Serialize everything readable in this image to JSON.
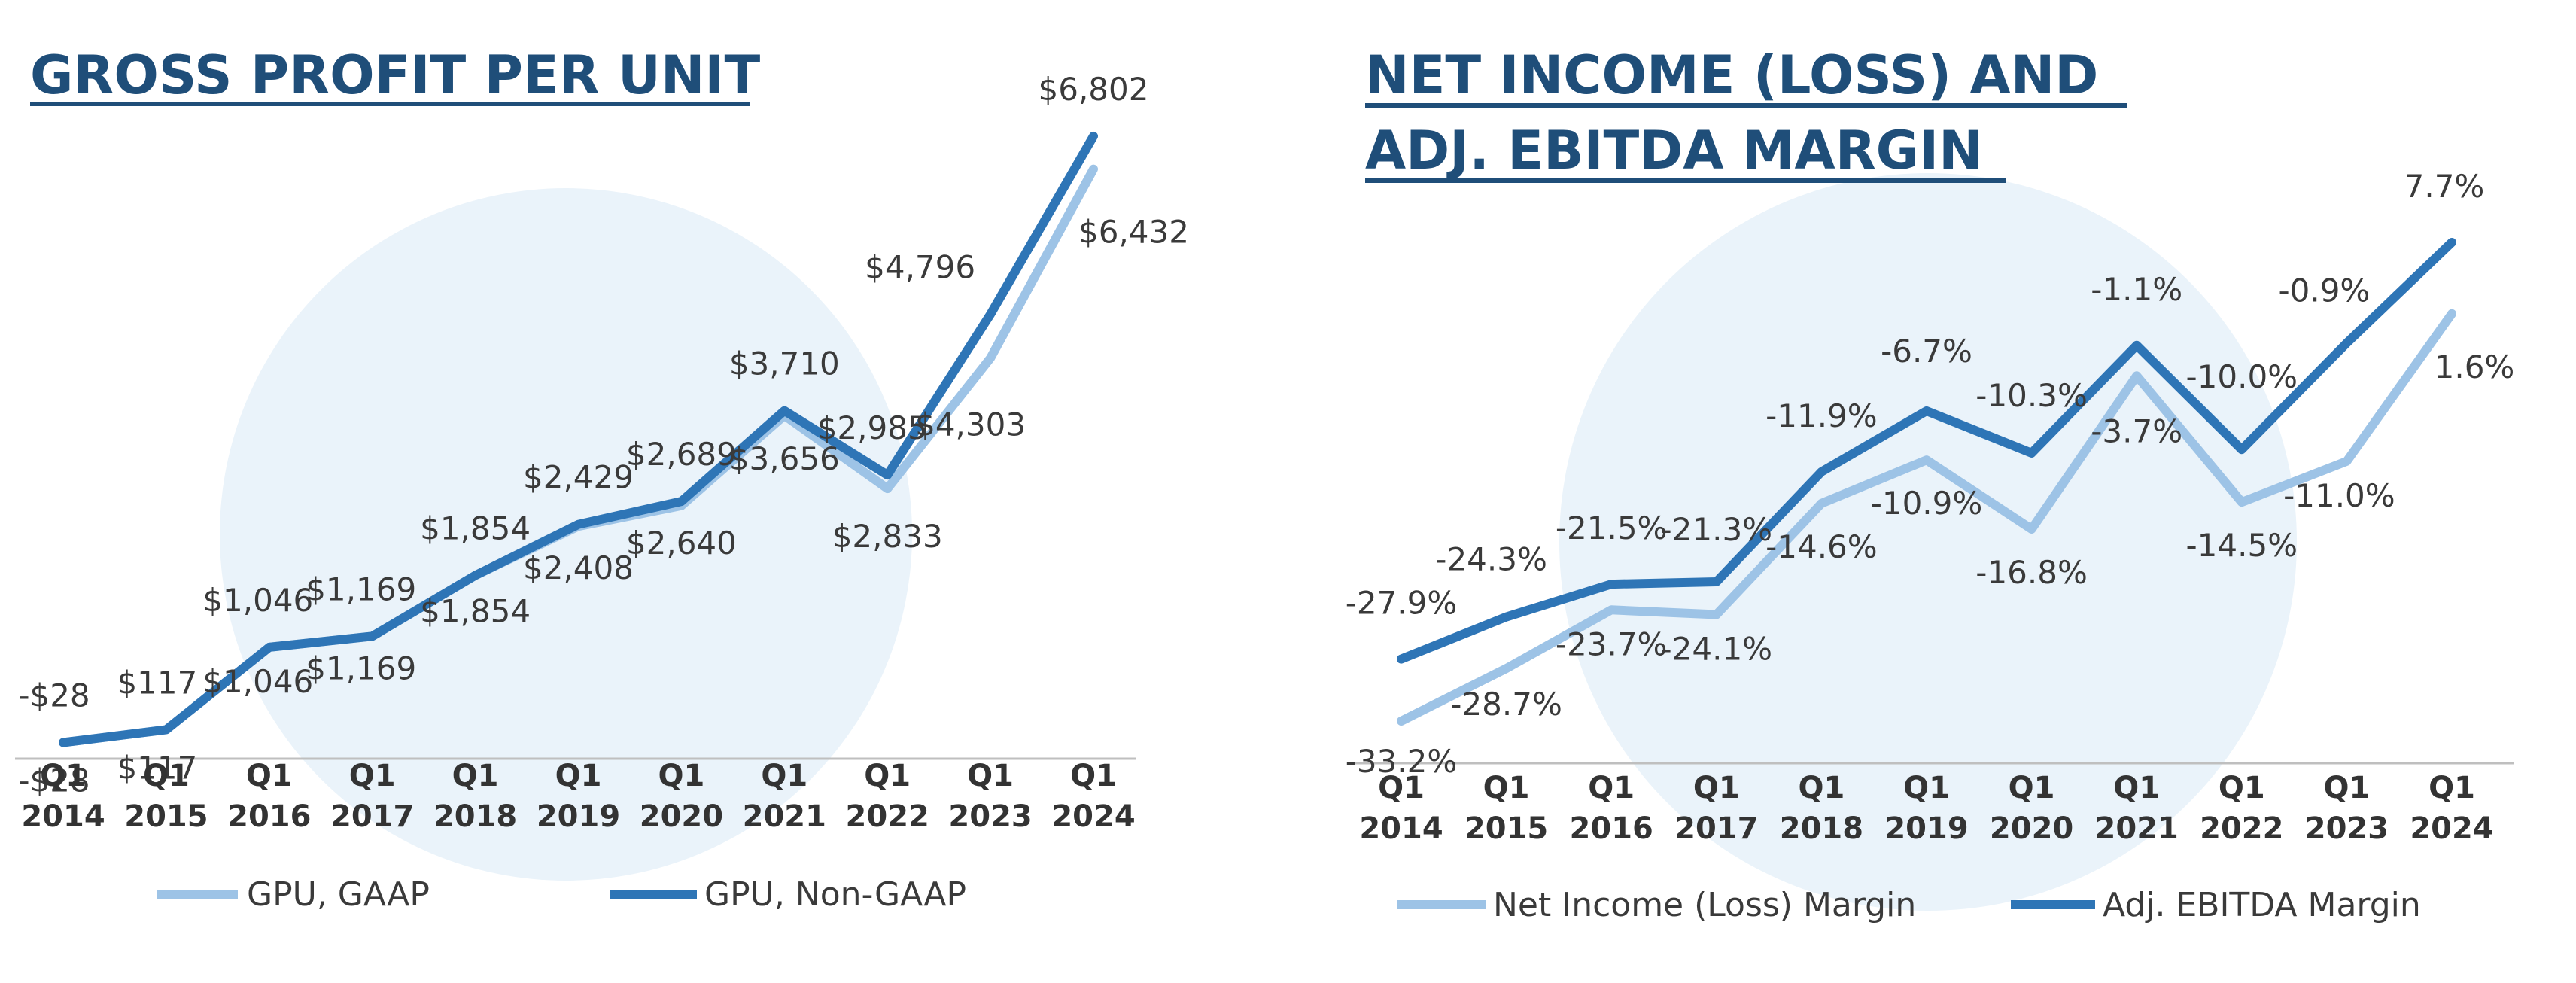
{
  "colors": {
    "title": "#1F4E79",
    "light_series": "#9DC3E6",
    "dark_series": "#2E75B6",
    "bubble": "#EAF3FA",
    "axis": "#bfbfbf"
  },
  "chart_data": [
    {
      "type": "line",
      "title": "GROSS PROFIT PER UNIT",
      "categories": [
        "Q1 2014",
        "Q1 2015",
        "Q1 2016",
        "Q1 2017",
        "Q1 2018",
        "Q1 2019",
        "Q1 2020",
        "Q1 2021",
        "Q1 2022",
        "Q1 2023",
        "Q1 2024"
      ],
      "tick_labels": [
        [
          "Q1",
          "2014"
        ],
        [
          "Q1",
          "2015"
        ],
        [
          "Q1",
          "2016"
        ],
        [
          "Q1",
          "2017"
        ],
        [
          "Q1",
          "2018"
        ],
        [
          "Q1",
          "2019"
        ],
        [
          "Q1",
          "2020"
        ],
        [
          "Q1",
          "2021"
        ],
        [
          "Q1",
          "2022"
        ],
        [
          "Q1",
          "2023"
        ],
        [
          "Q1",
          "2024"
        ]
      ],
      "ylim": [
        -600,
        7700
      ],
      "grid": false,
      "legend_position": "bottom",
      "series": [
        {
          "name": "GPU, GAAP",
          "style": "light",
          "values": [
            -28,
            117,
            1046,
            1169,
            1854,
            2408,
            2640,
            3656,
            2833,
            4303,
            6432
          ],
          "labels": [
            "-$28",
            "$117",
            "$1,046",
            "$1,169",
            "$1,854",
            "$2,408",
            "$2,640",
            "$3,656",
            "$2,833",
            "$4,303",
            "$6,432"
          ]
        },
        {
          "name": "GPU, Non-GAAP",
          "style": "dark",
          "values": [
            -28,
            117,
            1046,
            1169,
            1854,
            2429,
            2689,
            3710,
            2985,
            4796,
            6802
          ],
          "labels": [
            "-$28",
            "$117",
            "$1,046",
            "$1,169",
            "$1,854",
            "$2,429",
            "$2,689",
            "$3,710",
            "$2,985",
            "$4,796",
            "$6,802"
          ]
        }
      ]
    },
    {
      "type": "line",
      "title_lines": [
        "NET INCOME (LOSS) AND",
        "ADJ. EBITDA MARGIN"
      ],
      "categories": [
        "Q1 2014",
        "Q1 2015",
        "Q1 2016",
        "Q1 2017",
        "Q1 2018",
        "Q1 2019",
        "Q1 2020",
        "Q1 2021",
        "Q1 2022",
        "Q1 2023",
        "Q1 2024"
      ],
      "tick_labels": [
        [
          "Q1",
          "2014"
        ],
        [
          "Q1",
          "2015"
        ],
        [
          "Q1",
          "2016"
        ],
        [
          "Q1",
          "2017"
        ],
        [
          "Q1",
          "2018"
        ],
        [
          "Q1",
          "2019"
        ],
        [
          "Q1",
          "2020"
        ],
        [
          "Q1",
          "2021"
        ],
        [
          "Q1",
          "2022"
        ],
        [
          "Q1",
          "2023"
        ],
        [
          "Q1",
          "2024"
        ]
      ],
      "ylim": [
        -44,
        14
      ],
      "grid": false,
      "legend_position": "bottom",
      "series": [
        {
          "name": "Net Income (Loss) Margin",
          "style": "light",
          "values": [
            -33.2,
            -28.7,
            -23.7,
            -24.1,
            -14.6,
            -10.9,
            -16.8,
            -3.7,
            -14.5,
            -11.0,
            1.6
          ],
          "labels": [
            "-33.2%",
            "-28.7%",
            "-23.7%",
            "-24.1%",
            "-14.6%",
            "-10.9%",
            "-16.8%",
            "-3.7%",
            "-14.5%",
            "-11.0%",
            "1.6%"
          ]
        },
        {
          "name": "Adj. EBITDA Margin",
          "style": "dark",
          "values": [
            -27.9,
            -24.3,
            -21.5,
            -21.3,
            -11.9,
            -6.7,
            -10.3,
            -1.1,
            -10.0,
            -0.9,
            7.7
          ],
          "labels": [
            "-27.9%",
            "-24.3%",
            "-21.5%",
            "-21.3%",
            "-11.9%",
            "-6.7%",
            "-10.3%",
            "-1.1%",
            "-10.0%",
            "-0.9%",
            "7.7%"
          ]
        }
      ]
    }
  ]
}
